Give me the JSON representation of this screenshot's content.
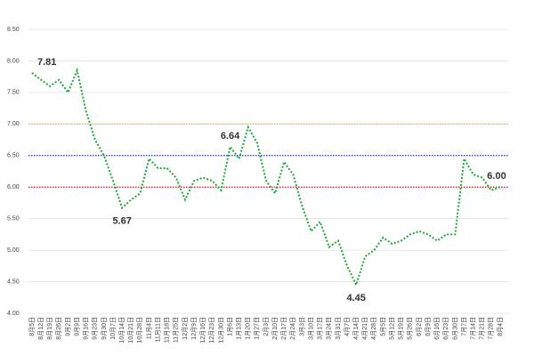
{
  "chart_data": {
    "type": "line",
    "categories": [
      "8月5日",
      "8月12日",
      "8月19日",
      "8月26日",
      "9月2日",
      "9月9日",
      "9月16日",
      "9月23日",
      "9月30日",
      "10月7日",
      "10月14日",
      "10月21日",
      "10月28日",
      "11月4日",
      "11月11日",
      "11月18日",
      "11月25日",
      "12月2日",
      "12月9日",
      "12月16日",
      "12月23日",
      "12月30日",
      "1月6日",
      "1月13日",
      "1月20日",
      "1月27日",
      "2月3日",
      "2月10日",
      "2月17日",
      "2月24日",
      "3月3日",
      "3月10日",
      "3月17日",
      "3月24日",
      "3月31日",
      "4月7日",
      "4月14日",
      "4月21日",
      "4月28日",
      "5月5日",
      "5月12日",
      "5月19日",
      "5月26日",
      "6月2日",
      "6月9日",
      "6月16日",
      "6月23日",
      "6月30日",
      "7月7日",
      "7月14日",
      "7月21日",
      "7月28日",
      "8月4日"
    ],
    "values": [
      7.81,
      7.7,
      7.6,
      7.7,
      7.5,
      7.85,
      7.2,
      6.75,
      6.5,
      6.1,
      5.67,
      5.8,
      5.9,
      6.45,
      6.3,
      6.3,
      6.15,
      5.8,
      6.1,
      6.15,
      6.1,
      5.95,
      6.64,
      6.45,
      6.95,
      6.7,
      6.1,
      5.9,
      6.4,
      6.2,
      5.7,
      5.3,
      5.45,
      5.05,
      5.15,
      4.75,
      4.45,
      4.9,
      5.0,
      5.2,
      5.1,
      5.15,
      5.25,
      5.3,
      5.25,
      5.15,
      5.25,
      5.25,
      6.45,
      6.2,
      6.15,
      5.95,
      6.0
    ],
    "value_labels": [
      "7.81",
      null,
      null,
      null,
      null,
      null,
      null,
      null,
      null,
      null,
      "5.67",
      null,
      null,
      null,
      null,
      null,
      null,
      null,
      null,
      null,
      null,
      null,
      "6.64",
      null,
      null,
      null,
      null,
      null,
      null,
      null,
      null,
      null,
      null,
      null,
      null,
      null,
      "4.45",
      null,
      null,
      null,
      null,
      null,
      null,
      null,
      null,
      null,
      null,
      null,
      null,
      null,
      null,
      null,
      "6.00"
    ],
    "color": "#1fa83a",
    "ylim": [
      4,
      8.5
    ],
    "yticks": [
      {
        "value": 4,
        "label": "4.00"
      },
      {
        "value": 4.5,
        "label": "4.50"
      },
      {
        "value": 5,
        "label": "5.00"
      },
      {
        "value": 5.5,
        "label": "5.50"
      },
      {
        "value": 6,
        "label": "6.00"
      },
      {
        "value": 6.5,
        "label": "6.50"
      },
      {
        "value": 7,
        "label": "7.00"
      },
      {
        "value": 7.5,
        "label": "7.50"
      },
      {
        "value": 8,
        "label": "8.00"
      },
      {
        "value": 8.5,
        "label": "8.50"
      }
    ],
    "grid": true,
    "reference_lines": [
      {
        "value": 7,
        "color": "#f0b400"
      },
      {
        "value": 6.5,
        "color": "#2a3cc0"
      },
      {
        "value": 6,
        "color": "#d42020"
      }
    ]
  }
}
